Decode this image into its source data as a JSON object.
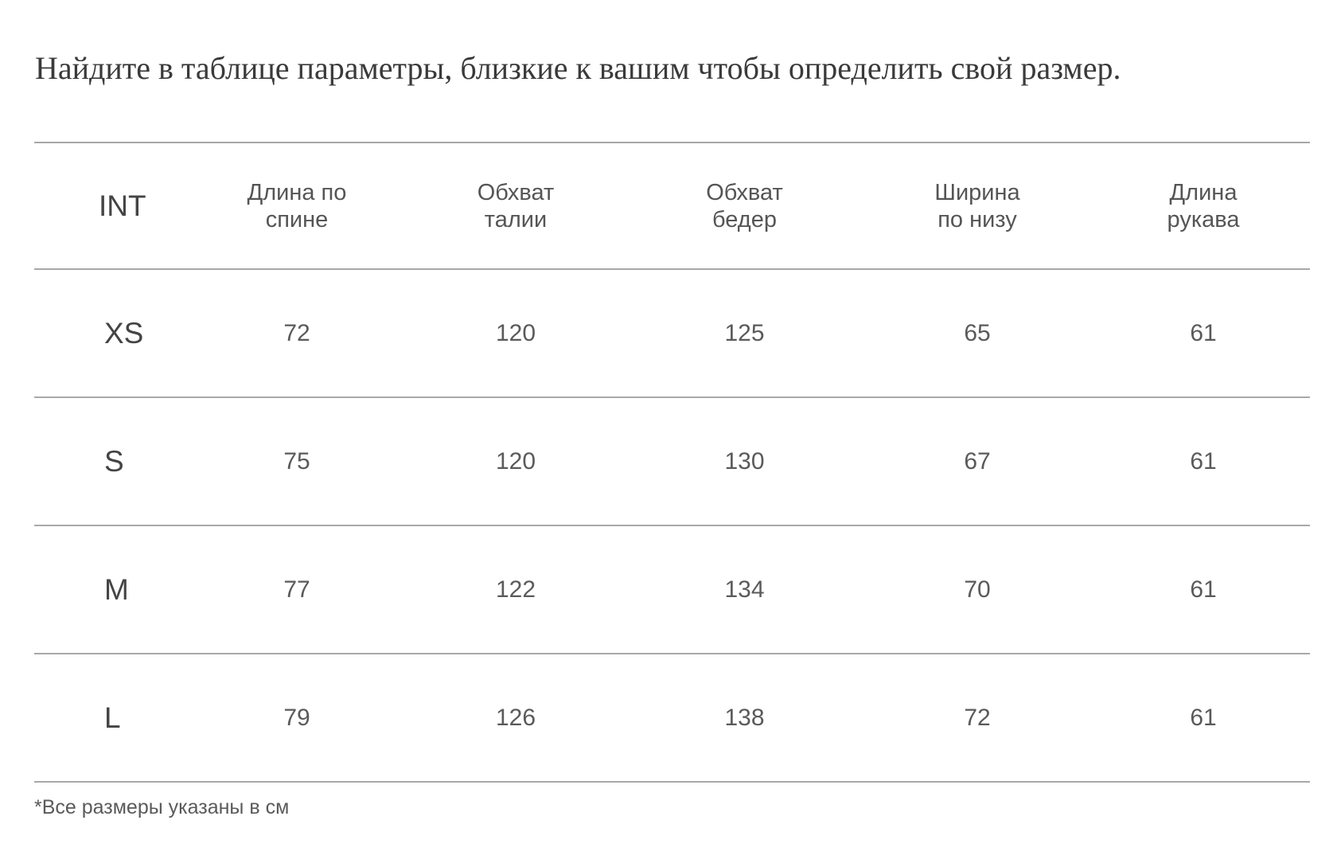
{
  "intro_text": "Найдите в таблице параметры, близкие к вашим чтобы определить свой размер.",
  "table": {
    "headers": {
      "int": "INT",
      "back_length": [
        "Длина по",
        "спине"
      ],
      "waist": [
        "Обхват",
        "талии"
      ],
      "hips": [
        "Обхват",
        "бедер"
      ],
      "bottom_width": [
        "Ширина",
        "по низу"
      ],
      "sleeve_length": [
        "Длина",
        "рукава"
      ]
    },
    "rows": [
      {
        "size": "XS",
        "back_length": "72",
        "waist": "120",
        "hips": "125",
        "bottom_width": "65",
        "sleeve_length": "61"
      },
      {
        "size": "S",
        "back_length": "75",
        "waist": "120",
        "hips": "130",
        "bottom_width": "67",
        "sleeve_length": "61"
      },
      {
        "size": "M",
        "back_length": "77",
        "waist": "122",
        "hips": "134",
        "bottom_width": "70",
        "sleeve_length": "61"
      },
      {
        "size": "L",
        "back_length": "79",
        "waist": "126",
        "hips": "138",
        "bottom_width": "72",
        "sleeve_length": "61"
      }
    ]
  },
  "footnote": "*Все размеры указаны в см",
  "colors": {
    "text": "#333333",
    "divider": "#a8a8a8",
    "background": "#ffffff"
  }
}
